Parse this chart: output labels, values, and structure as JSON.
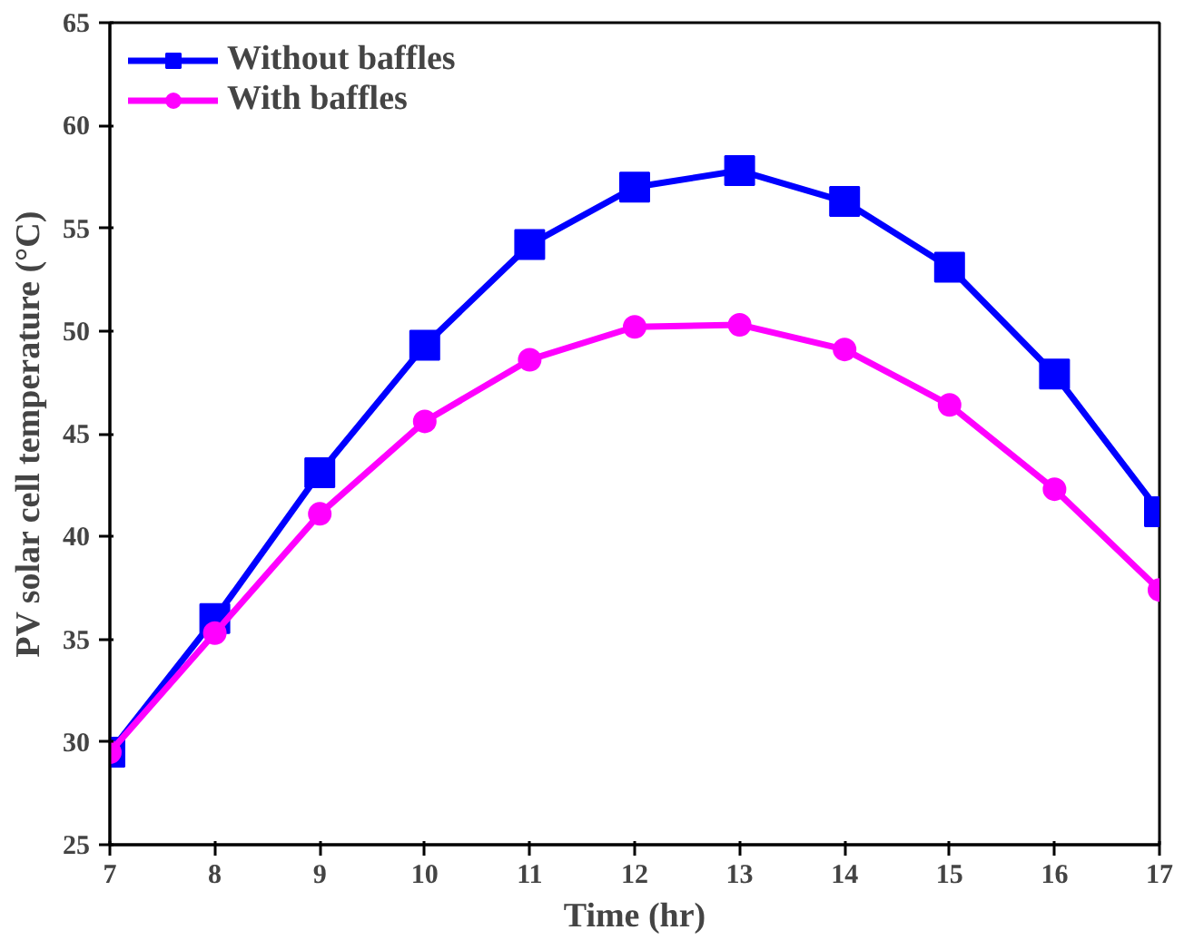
{
  "chart_data": {
    "type": "line",
    "xlabel": "Time (hr)",
    "ylabel": "PV solar cell temperature (°C)",
    "x": [
      7,
      8,
      9,
      10,
      11,
      12,
      13,
      14,
      15,
      16,
      17
    ],
    "series": [
      {
        "name": "Without baffles",
        "color": "#0000ff",
        "marker": "square",
        "values": [
          29.5,
          36.0,
          43.1,
          49.3,
          54.2,
          57.0,
          57.8,
          56.3,
          53.1,
          47.9,
          41.2
        ]
      },
      {
        "name": "With baffles",
        "color": "#ff00ff",
        "marker": "circle",
        "values": [
          29.5,
          35.3,
          41.1,
          45.6,
          48.6,
          50.2,
          50.3,
          49.1,
          46.4,
          42.3,
          37.4
        ]
      }
    ],
    "xlim": [
      7,
      17
    ],
    "xticks": [
      7,
      8,
      9,
      10,
      11,
      12,
      13,
      14,
      15,
      16,
      17
    ],
    "ylim": [
      25,
      65
    ],
    "yticks": [
      25,
      30,
      35,
      40,
      45,
      50,
      55,
      60,
      65
    ],
    "grid": false,
    "legend": "top left",
    "line_style": "solid"
  }
}
